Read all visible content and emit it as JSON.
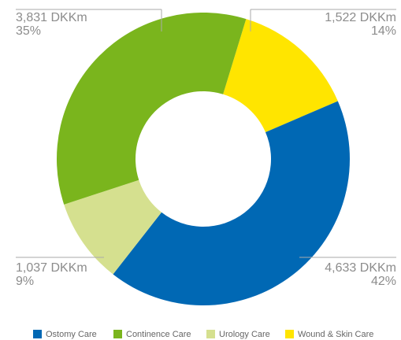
{
  "chart_data": {
    "type": "pie",
    "categories": [
      "Ostomy Care",
      "Continence Care",
      "Urology Care",
      "Wound & Skin Care"
    ],
    "values": [
      4633,
      3831,
      1037,
      1522
    ],
    "value_labels": [
      "4,633 DKKm",
      "3,831 DKKm",
      "1,037 DKKm",
      "1,522 DKKm"
    ],
    "percentages": [
      42,
      35,
      9,
      14
    ],
    "percentage_labels": [
      "42%",
      "35%",
      "9%",
      "14%"
    ],
    "colors": [
      "#0068b4",
      "#7ab51d",
      "#d5e08f",
      "#ffe500"
    ]
  }
}
